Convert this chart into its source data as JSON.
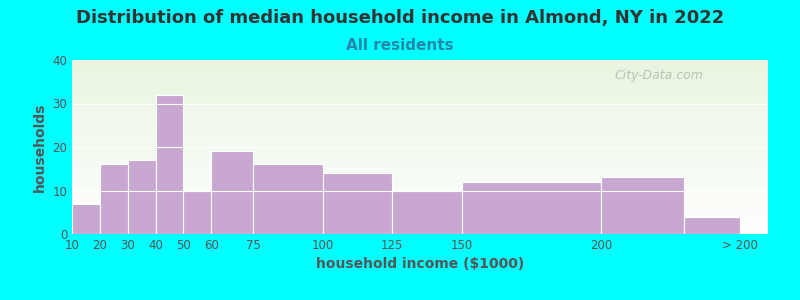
{
  "title": "Distribution of median household income in Almond, NY in 2022",
  "subtitle": "All residents",
  "xlabel": "household income ($1000)",
  "ylabel": "households",
  "background_color": "#00FFFF",
  "plot_bg_gradient_top": "#e8f5e0",
  "plot_bg_gradient_bottom": "#ffffff",
  "bar_color": "#c8a8d0",
  "bar_edgecolor": "#ffffff",
  "bar_left_edges": [
    10,
    20,
    30,
    40,
    50,
    60,
    75,
    100,
    125,
    150,
    200,
    230
  ],
  "bar_widths": [
    10,
    10,
    10,
    10,
    10,
    15,
    25,
    25,
    25,
    50,
    30,
    20
  ],
  "values": [
    7,
    16,
    17,
    32,
    10,
    19,
    16,
    14,
    10,
    12,
    13,
    4
  ],
  "tick_positions": [
    10,
    20,
    30,
    40,
    50,
    60,
    75,
    100,
    125,
    150,
    200,
    250
  ],
  "tick_labels": [
    "10",
    "20",
    "30",
    "40",
    "50",
    "60",
    "75",
    "100",
    "125",
    "150",
    "200",
    "> 200"
  ],
  "xlim": [
    10,
    260
  ],
  "ylim": [
    0,
    40
  ],
  "yticks": [
    0,
    10,
    20,
    30,
    40
  ],
  "title_fontsize": 13,
  "subtitle_fontsize": 11,
  "subtitle_color": "#2288aa",
  "axis_label_fontsize": 10,
  "tick_fontsize": 8.5,
  "watermark_text": "City-Data.com",
  "watermark_color": "#b0b8b0"
}
